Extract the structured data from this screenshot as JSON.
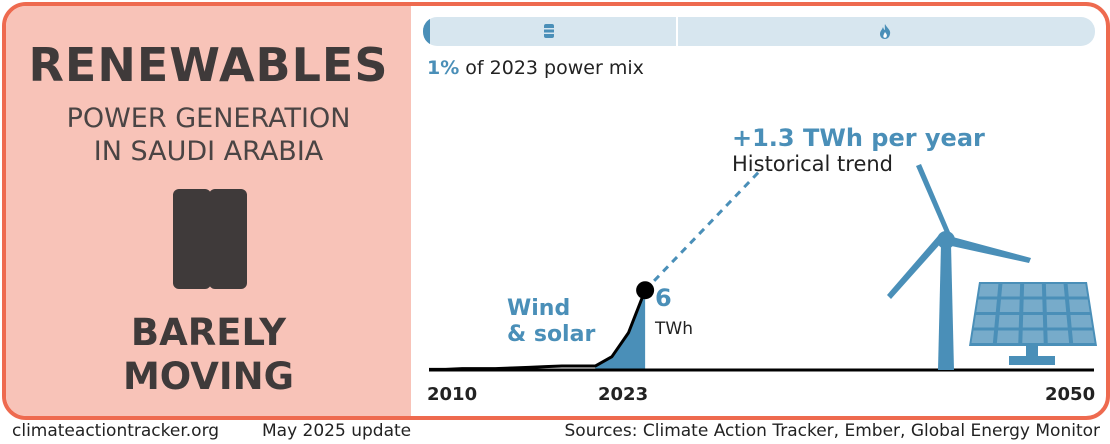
{
  "panel": {
    "title": "RENEWABLES",
    "subtitle_line1": "POWER GENERATION",
    "subtitle_line2": "IN SAUDI ARABIA",
    "status_line1": "BARELY",
    "status_line2": "MOVING"
  },
  "mix": {
    "share_pct": 1,
    "share_label": "1%",
    "caption": " of 2023 power mix",
    "icons": [
      "oil-barrel-icon",
      "gas-flame-icon"
    ]
  },
  "trend": {
    "value_label": "+1.3 TWh per year",
    "caption": "Historical trend"
  },
  "series_label_line1": "Wind",
  "series_label_line2": "& solar",
  "current": {
    "value": "6",
    "unit": "TWh"
  },
  "footer": {
    "site": "climateactiontracker.org",
    "update": "May 2025 update",
    "sources": "Sources: Climate Action Tracker, Ember, Global Energy Monitor"
  },
  "colors": {
    "accent_blue": "#4a8fb8",
    "frame_orange": "#ee6a4f",
    "panel_pink": "#f8c3b8",
    "dark": "#3f3a3a"
  },
  "chart_data": {
    "type": "line",
    "x": [
      2010,
      2011,
      2012,
      2013,
      2014,
      2015,
      2016,
      2017,
      2018,
      2019,
      2020,
      2021,
      2022,
      2023
    ],
    "series": [
      {
        "name": "Wind & solar",
        "values": [
          0.05,
          0.05,
          0.1,
          0.1,
          0.1,
          0.15,
          0.2,
          0.25,
          0.3,
          0.3,
          0.3,
          1.0,
          2.8,
          6.0
        ]
      }
    ],
    "trend": {
      "from": 2023,
      "to": 2030,
      "rate_twh_per_year": 1.3
    },
    "x_ticks": [
      "2010",
      "2023",
      "2050"
    ],
    "xlim": [
      2010,
      2050
    ],
    "ylim": [
      0,
      25
    ],
    "grid": false,
    "legend": "none"
  }
}
